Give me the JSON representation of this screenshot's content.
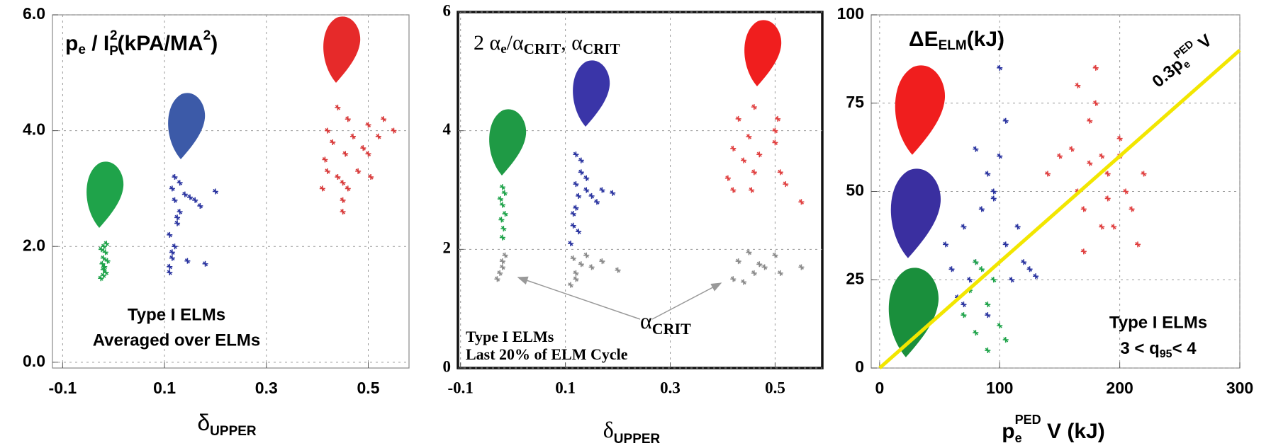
{
  "chart_data": [
    {
      "type": "scatter",
      "title": [
        "p",
        "e",
        " / I",
        "P",
        "2",
        "(kPA/MA",
        "2",
        ")"
      ],
      "xlabel": [
        "δ",
        "UPPER"
      ],
      "xlim": [
        -0.12,
        0.58
      ],
      "xticks": [
        -0.1,
        0.1,
        0.3,
        0.5
      ],
      "ylim": [
        -0.1,
        6.0
      ],
      "yticks": [
        {
          "value": 0,
          "label": "0.0"
        },
        {
          "value": 2,
          "label": "2.0"
        },
        {
          "value": 4,
          "label": "4.0"
        },
        {
          "value": 6,
          "label": "6.0"
        }
      ],
      "grid": true,
      "annotations": [
        [
          "Type I ELMs"
        ],
        [
          "Averaged over ELMs"
        ]
      ],
      "series": [
        {
          "color": "#1fa34a",
          "x": [
            -0.025,
            -0.02,
            -0.015,
            -0.02,
            -0.018,
            -0.022,
            -0.012,
            -0.02,
            -0.016,
            -0.024,
            -0.019,
            -0.014
          ],
          "values": [
            1.45,
            1.5,
            1.55,
            1.6,
            1.65,
            1.7,
            1.75,
            1.8,
            1.9,
            1.95,
            2.0,
            2.05
          ]
        },
        {
          "color": "#2b35a0",
          "x": [
            0.11,
            0.115,
            0.12,
            0.11,
            0.125,
            0.13,
            0.12,
            0.115,
            0.14,
            0.15,
            0.16,
            0.13,
            0.17,
            0.2,
            0.12,
            0.115,
            0.18,
            0.145,
            0.125,
            0.11
          ],
          "values": [
            1.65,
            1.8,
            2.0,
            2.2,
            2.4,
            2.6,
            2.8,
            3.0,
            2.9,
            2.85,
            2.8,
            3.1,
            2.7,
            2.95,
            3.2,
            1.9,
            1.7,
            1.75,
            2.5,
            1.55
          ]
        },
        {
          "color": "#d83a3a",
          "x": [
            0.41,
            0.415,
            0.42,
            0.43,
            0.44,
            0.45,
            0.455,
            0.46,
            0.47,
            0.48,
            0.49,
            0.5,
            0.505,
            0.52,
            0.53,
            0.55,
            0.44,
            0.45,
            0.46,
            0.42,
            0.5,
            0.45
          ],
          "values": [
            3.0,
            3.5,
            4.0,
            3.8,
            3.2,
            2.6,
            3.6,
            4.2,
            3.9,
            3.3,
            3.7,
            4.1,
            3.2,
            3.9,
            4.2,
            4.0,
            4.4,
            2.8,
            3.0,
            3.3,
            3.6,
            3.1
          ]
        }
      ]
    },
    {
      "type": "scatter",
      "title": [
        "2 α",
        "e",
        "/α",
        "CRIT",
        ", α",
        "CRIT"
      ],
      "xlabel": [
        "δ",
        "UPPER"
      ],
      "xlim": [
        -0.105,
        0.59
      ],
      "xticks": [
        -0.1,
        0.1,
        0.3,
        0.5
      ],
      "ylim": [
        0,
        6
      ],
      "yticks": [
        0,
        2,
        4,
        6
      ],
      "grid": true,
      "annotations": [
        [
          "α",
          "CRIT"
        ],
        [
          "Type I ELMs"
        ],
        [
          "Last 20% of ELM Cycle"
        ]
      ],
      "series": [
        {
          "color": "#8a8a8a",
          "x": [
            -0.03,
            -0.02,
            -0.015,
            -0.025,
            -0.02,
            0.11,
            0.12,
            0.13,
            0.14,
            0.15,
            0.12,
            0.17,
            0.2,
            0.115,
            0.42,
            0.43,
            0.45,
            0.46,
            0.48,
            0.5,
            0.51,
            0.47,
            0.44,
            0.55
          ],
          "values": [
            1.5,
            1.7,
            1.9,
            1.6,
            1.8,
            1.4,
            1.6,
            1.75,
            1.9,
            1.7,
            1.5,
            1.8,
            1.65,
            1.85,
            1.5,
            1.8,
            1.95,
            1.6,
            1.7,
            1.9,
            1.6,
            1.75,
            1.45,
            1.7
          ]
        },
        {
          "color": "#1fa34a",
          "x": [
            -0.02,
            -0.018,
            -0.022,
            -0.015,
            -0.02,
            -0.024,
            -0.016,
            -0.02
          ],
          "values": [
            2.2,
            2.35,
            2.5,
            2.6,
            2.75,
            2.85,
            2.95,
            3.05
          ]
        },
        {
          "color": "#2b35a0",
          "x": [
            0.11,
            0.115,
            0.12,
            0.125,
            0.12,
            0.13,
            0.14,
            0.15,
            0.16,
            0.13,
            0.12,
            0.115,
            0.17,
            0.19,
            0.14,
            0.125
          ],
          "values": [
            2.1,
            2.4,
            2.7,
            2.9,
            3.1,
            3.3,
            3.0,
            2.9,
            2.8,
            3.5,
            3.6,
            2.6,
            3.0,
            2.95,
            3.2,
            2.3
          ]
        },
        {
          "color": "#e04040",
          "x": [
            0.41,
            0.42,
            0.43,
            0.44,
            0.45,
            0.455,
            0.46,
            0.47,
            0.5,
            0.505,
            0.51,
            0.52,
            0.42,
            0.46,
            0.5,
            0.55
          ],
          "values": [
            3.2,
            3.7,
            4.2,
            3.5,
            3.9,
            3.0,
            4.4,
            3.6,
            3.8,
            4.2,
            3.3,
            3.1,
            3.0,
            3.3,
            4.0,
            2.8
          ]
        }
      ]
    },
    {
      "type": "scatter",
      "title": [
        "ΔE",
        "ELM",
        "(kJ)"
      ],
      "xlabel": [
        "p",
        "e",
        "PED",
        " V (kJ)"
      ],
      "xlim": [
        -7,
        300
      ],
      "xticks": [
        0,
        100,
        200,
        300
      ],
      "ylim": [
        0,
        100
      ],
      "yticks": [
        0,
        25,
        50,
        75,
        100
      ],
      "grid": true,
      "annotations": [
        [
          "0.3p",
          "e",
          "PED",
          " V"
        ],
        [
          "Type I ELMs"
        ],
        [
          "3 < q",
          "95",
          "< 4"
        ]
      ],
      "series": [
        {
          "color": "#e04040",
          "x": [
            140,
            150,
            160,
            165,
            170,
            175,
            180,
            185,
            190,
            195,
            200,
            205,
            210,
            215,
            220,
            170,
            180,
            190,
            175,
            165,
            200,
            185
          ],
          "values": [
            55,
            60,
            62,
            50,
            45,
            70,
            85,
            60,
            55,
            40,
            65,
            50,
            45,
            35,
            55,
            33,
            75,
            48,
            58,
            80,
            60,
            40
          ]
        },
        {
          "color": "#2b35a0",
          "x": [
            55,
            60,
            65,
            70,
            75,
            80,
            85,
            90,
            95,
            100,
            105,
            110,
            115,
            120,
            125,
            130,
            100,
            90,
            80,
            70,
            105,
            95
          ],
          "values": [
            35,
            28,
            20,
            40,
            25,
            30,
            45,
            15,
            50,
            60,
            35,
            25,
            40,
            30,
            28,
            26,
            85,
            55,
            62,
            18,
            70,
            48
          ]
        },
        {
          "color": "#1fa34a",
          "x": [
            70,
            75,
            80,
            85,
            90,
            95,
            100,
            105,
            80,
            90
          ],
          "values": [
            15,
            22,
            10,
            28,
            18,
            25,
            12,
            8,
            30,
            5
          ]
        },
        {
          "type": "line",
          "color": "#f2e600",
          "x": [
            0,
            300
          ],
          "values": [
            0,
            90
          ]
        }
      ]
    }
  ]
}
